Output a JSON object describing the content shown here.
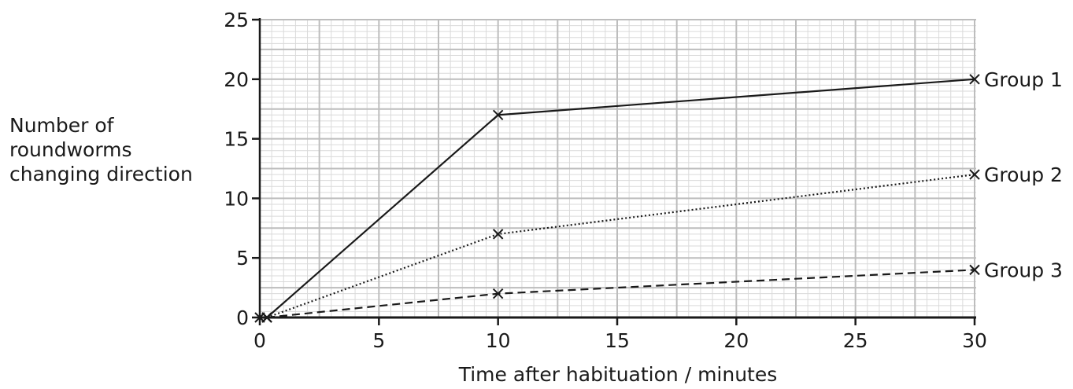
{
  "chart_data": {
    "type": "line",
    "title": "",
    "xlabel": "Time after habituation / minutes",
    "ylabel_lines": [
      "Number of",
      "roundworms",
      "changing direction"
    ],
    "xlim": [
      0,
      31
    ],
    "ylim": [
      0,
      25
    ],
    "x_ticks": [
      0,
      5,
      10,
      15,
      20,
      25,
      30
    ],
    "x_tick_labels": [
      "0",
      "5",
      "10",
      "15",
      "20",
      "25",
      "30"
    ],
    "y_ticks": [
      0,
      5,
      10,
      15,
      20,
      25
    ],
    "y_tick_labels": [
      "0",
      "5",
      "10",
      "15",
      "20",
      "25"
    ],
    "grid": true,
    "legend": "inline labels at right end of each line",
    "series": [
      {
        "name": "Group 1",
        "style": "solid",
        "x": [
          0.3,
          10,
          30
        ],
        "y": [
          0,
          17,
          20
        ]
      },
      {
        "name": "Group 2",
        "style": "dotted",
        "x": [
          0.3,
          10,
          30
        ],
        "y": [
          0,
          7,
          12
        ]
      },
      {
        "name": "Group 3",
        "style": "dashed",
        "x": [
          0.3,
          10,
          30
        ],
        "y": [
          0,
          2,
          4
        ]
      }
    ],
    "extra_points": [
      {
        "x": 0,
        "y": 0
      }
    ],
    "colors": {
      "line": "#1a1a1a",
      "grid_major": "#bdbdbd",
      "grid_minor": "#dadada",
      "axis": "#1a1a1a"
    }
  }
}
